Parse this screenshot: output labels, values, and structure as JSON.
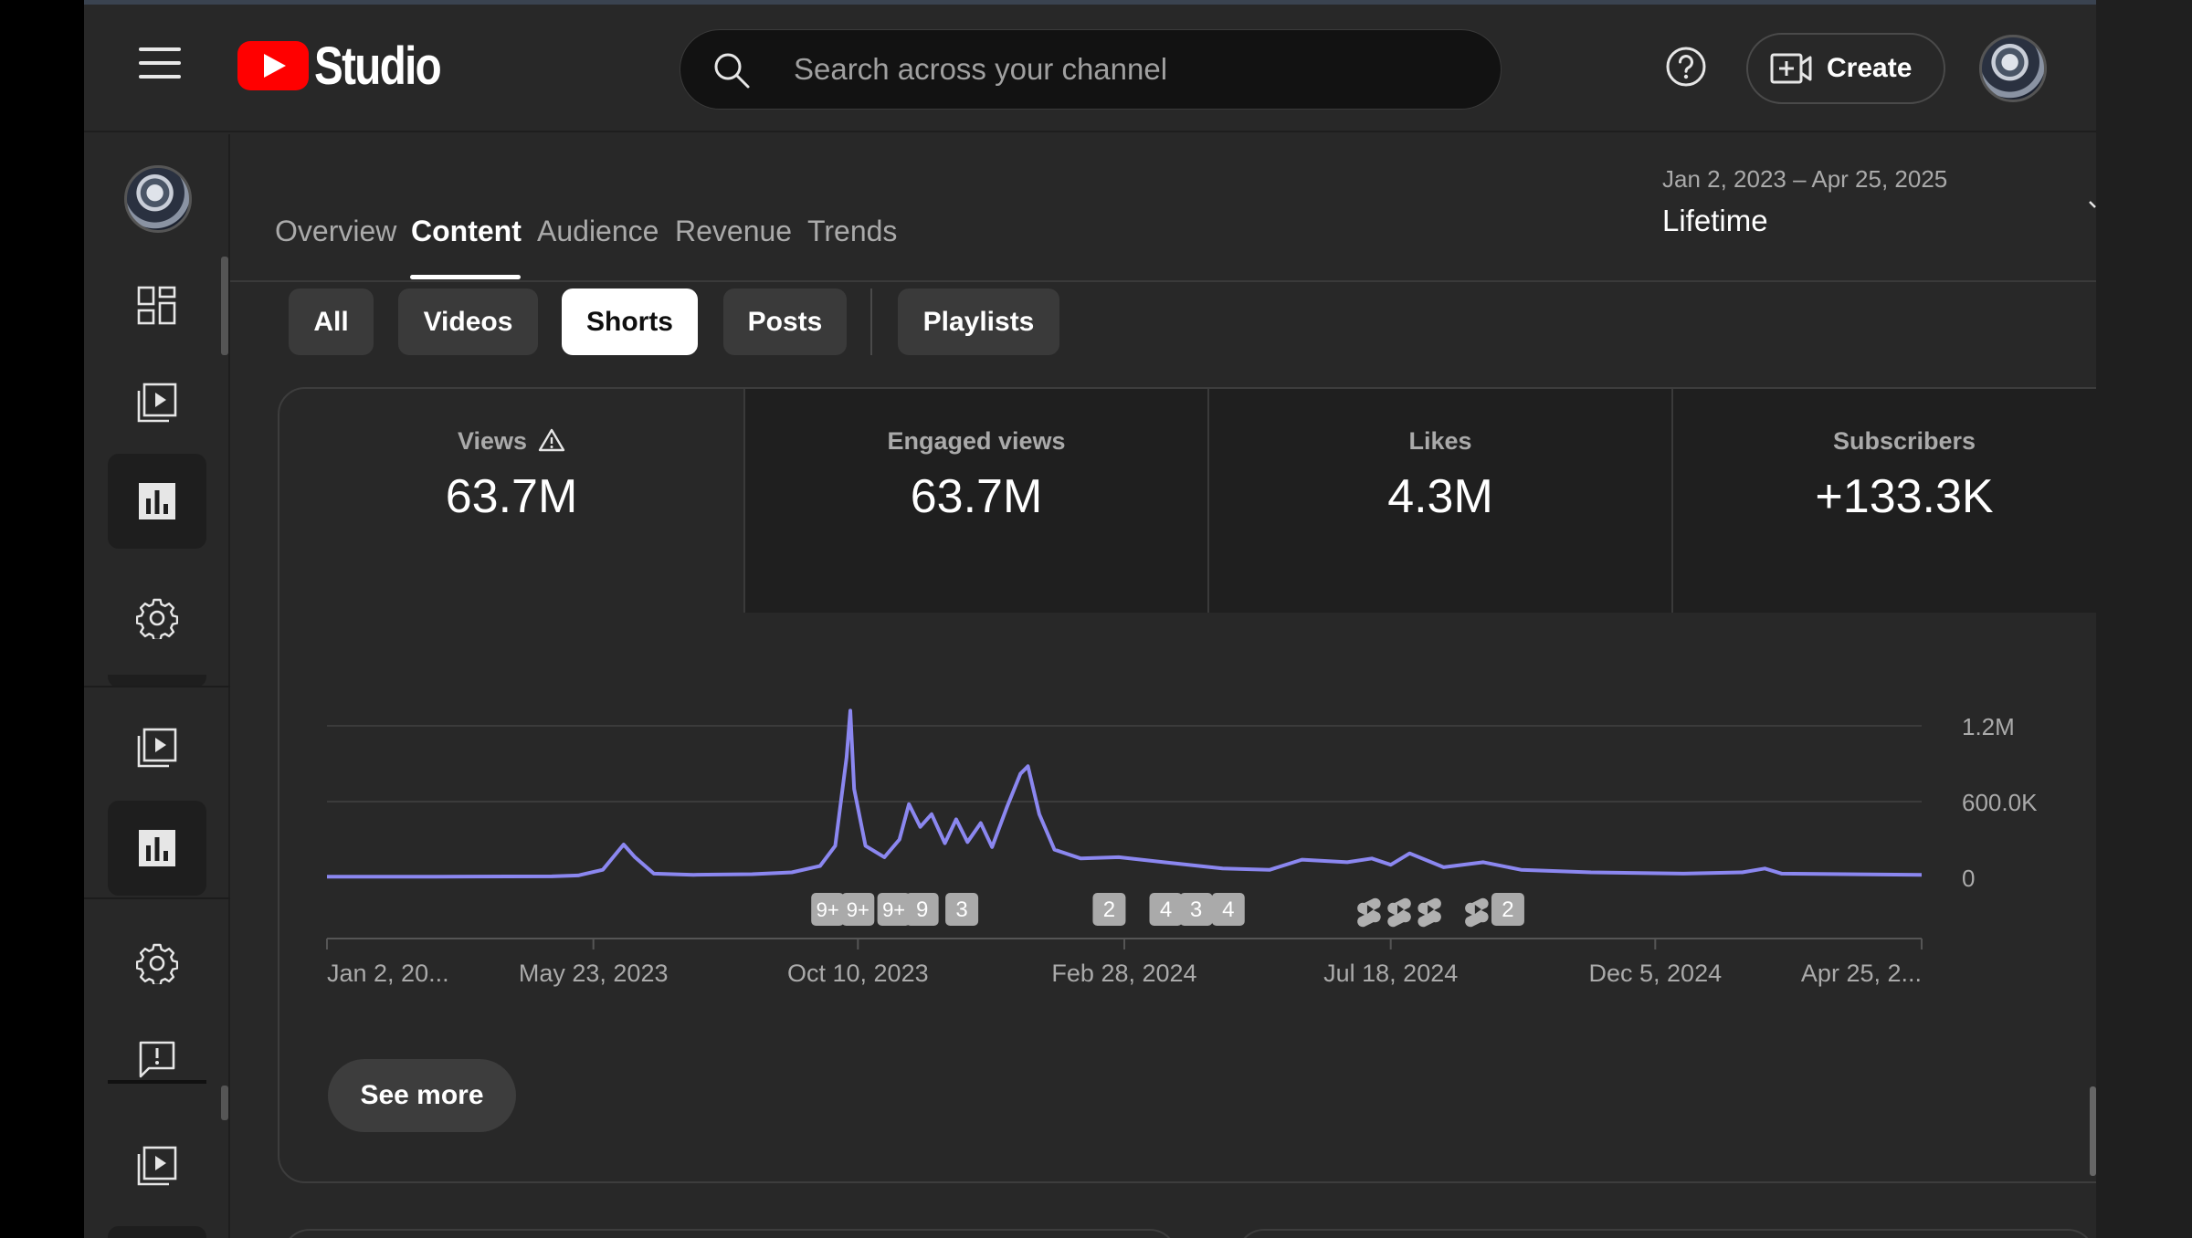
{
  "header": {
    "logo_text": "Studio",
    "search_placeholder": "Search across your channel",
    "create_label": "Create"
  },
  "tabs": [
    {
      "label": "Overview"
    },
    {
      "label": "Content"
    },
    {
      "label": "Audience"
    },
    {
      "label": "Revenue"
    },
    {
      "label": "Trends"
    }
  ],
  "date_range": {
    "range": "Jan 2, 2023 – Apr 25, 2025",
    "period": "Lifetime"
  },
  "filters": [
    {
      "label": "All"
    },
    {
      "label": "Videos"
    },
    {
      "label": "Shorts"
    },
    {
      "label": "Posts"
    },
    {
      "label": "Playlists"
    }
  ],
  "metrics": [
    {
      "label": "Views",
      "value": "63.7M"
    },
    {
      "label": "Engaged views",
      "value": "63.7M"
    },
    {
      "label": "Likes",
      "value": "4.3M"
    },
    {
      "label": "Subscribers",
      "value": "+133.3K"
    }
  ],
  "see_more_label": "See more",
  "colors": {
    "accent": "#8b87f0",
    "brand_red": "#ff0000",
    "background": "#282828"
  },
  "chart_data": {
    "type": "line",
    "series": [
      {
        "points": [
          [
            "2023-01-02",
            5000
          ],
          [
            "2023-03-01",
            6000
          ],
          [
            "2023-05-01",
            8000
          ],
          [
            "2023-05-15",
            15000
          ],
          [
            "2023-05-28",
            60000
          ],
          [
            "2023-06-08",
            260000
          ],
          [
            "2023-06-14",
            160000
          ],
          [
            "2023-06-24",
            30000
          ],
          [
            "2023-07-15",
            20000
          ],
          [
            "2023-08-15",
            25000
          ],
          [
            "2023-09-05",
            40000
          ],
          [
            "2023-09-20",
            90000
          ],
          [
            "2023-09-28",
            250000
          ],
          [
            "2023-10-04",
            950000
          ],
          [
            "2023-10-06",
            1320000
          ],
          [
            "2023-10-08",
            700000
          ],
          [
            "2023-10-14",
            250000
          ],
          [
            "2023-10-24",
            160000
          ],
          [
            "2023-11-01",
            300000
          ],
          [
            "2023-11-06",
            580000
          ],
          [
            "2023-11-12",
            400000
          ],
          [
            "2023-11-18",
            500000
          ],
          [
            "2023-11-25",
            270000
          ],
          [
            "2023-12-01",
            460000
          ],
          [
            "2023-12-07",
            280000
          ],
          [
            "2023-12-14",
            430000
          ],
          [
            "2023-12-20",
            240000
          ],
          [
            "2023-12-28",
            560000
          ],
          [
            "2024-01-04",
            820000
          ],
          [
            "2024-01-08",
            880000
          ],
          [
            "2024-01-14",
            500000
          ],
          [
            "2024-01-22",
            220000
          ],
          [
            "2024-02-05",
            150000
          ],
          [
            "2024-02-25",
            160000
          ],
          [
            "2024-03-20",
            120000
          ],
          [
            "2024-04-20",
            70000
          ],
          [
            "2024-05-15",
            60000
          ],
          [
            "2024-06-01",
            140000
          ],
          [
            "2024-06-25",
            120000
          ],
          [
            "2024-07-08",
            150000
          ],
          [
            "2024-07-18",
            100000
          ],
          [
            "2024-07-28",
            190000
          ],
          [
            "2024-08-15",
            80000
          ],
          [
            "2024-09-05",
            120000
          ],
          [
            "2024-09-25",
            60000
          ],
          [
            "2024-11-01",
            40000
          ],
          [
            "2024-12-20",
            30000
          ],
          [
            "2025-01-20",
            40000
          ],
          [
            "2025-02-01",
            70000
          ],
          [
            "2025-02-10",
            30000
          ],
          [
            "2025-04-25",
            20000
          ]
        ]
      }
    ],
    "x_ticks": [
      "Jan 2, 20...",
      "May 23, 2023",
      "Oct 10, 2023",
      "Feb 28, 2024",
      "Jul 18, 2024",
      "Dec 5, 2024",
      "Apr 25, 2..."
    ],
    "x_tick_dates": [
      "2023-01-02",
      "2023-05-23",
      "2023-10-10",
      "2024-02-28",
      "2024-07-18",
      "2024-12-05",
      "2025-04-25"
    ],
    "y_ticks": [
      "0",
      "600.0K",
      "1.2M"
    ],
    "y_tick_values": [
      0,
      600000,
      1200000
    ],
    "ylim": [
      0,
      1350000
    ],
    "xlim": [
      "2023-01-02",
      "2025-04-25"
    ],
    "grid": true,
    "y_axis_position": "right",
    "upload_markers": [
      {
        "date": "2023-09-24",
        "label": "9+"
      },
      {
        "date": "2023-10-10",
        "label": "9+"
      },
      {
        "date": "2023-10-29",
        "label": "9+"
      },
      {
        "date": "2023-11-13",
        "label": "9"
      },
      {
        "date": "2023-12-04",
        "label": "3"
      },
      {
        "date": "2024-02-20",
        "label": "2"
      },
      {
        "date": "2024-03-21",
        "label": "4"
      },
      {
        "date": "2024-04-06",
        "label": "3"
      },
      {
        "date": "2024-04-23",
        "label": "4"
      },
      {
        "date": "2024-07-07",
        "label": "shorts-icon"
      },
      {
        "date": "2024-07-23",
        "label": "shorts-icon"
      },
      {
        "date": "2024-08-08",
        "label": "shorts-icon"
      },
      {
        "date": "2024-09-02",
        "label": "shorts-icon"
      },
      {
        "date": "2024-09-18",
        "label": "2"
      }
    ]
  }
}
